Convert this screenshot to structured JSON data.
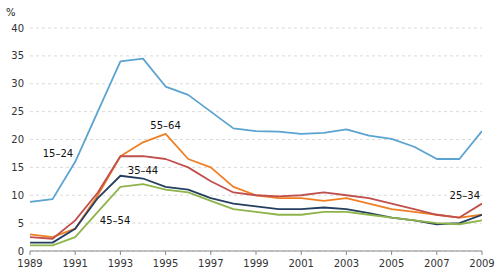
{
  "chart_data": {
    "type": "line",
    "y_label": "%",
    "x": [
      1989,
      1990,
      1991,
      1992,
      1993,
      1994,
      1995,
      1996,
      1997,
      1998,
      1999,
      2000,
      2001,
      2002,
      2003,
      2004,
      2005,
      2006,
      2007,
      2008,
      2009
    ],
    "series": [
      {
        "name": "15–24",
        "color": "#5ba3d0",
        "values": [
          8.8,
          9.3,
          16.0,
          25.0,
          34.0,
          34.5,
          29.5,
          28.0,
          25.0,
          22.0,
          21.5,
          21.4,
          21.0,
          21.2,
          21.8,
          20.7,
          20.1,
          18.7,
          16.5,
          16.5,
          21.5
        ]
      },
      {
        "name": "55–64",
        "color": "#f07f24",
        "values": [
          3.0,
          2.5,
          4.0,
          10.0,
          17.0,
          19.5,
          21.0,
          16.5,
          15.0,
          11.5,
          10.0,
          9.5,
          9.5,
          9.0,
          9.5,
          8.5,
          7.5,
          7.0,
          6.5,
          6.0,
          6.5
        ]
      },
      {
        "name": "25–34",
        "color": "#c0504d",
        "values": [
          2.5,
          2.2,
          5.5,
          10.5,
          17.0,
          17.0,
          16.5,
          15.0,
          12.5,
          10.5,
          10.0,
          9.8,
          10.0,
          10.5,
          10.0,
          9.5,
          8.5,
          7.5,
          6.5,
          6.0,
          8.5
        ]
      },
      {
        "name": "35–44",
        "color": "#243f60",
        "values": [
          1.5,
          1.5,
          4.0,
          9.5,
          13.5,
          13.0,
          11.5,
          11.0,
          9.5,
          8.5,
          8.0,
          7.5,
          7.5,
          7.8,
          7.5,
          6.8,
          6.0,
          5.5,
          4.8,
          5.0,
          6.5
        ]
      },
      {
        "name": "45–54",
        "color": "#8eb44a",
        "values": [
          1.0,
          1.0,
          2.5,
          7.0,
          11.5,
          12.0,
          11.0,
          10.5,
          9.0,
          7.5,
          7.0,
          6.5,
          6.5,
          7.0,
          7.0,
          6.5,
          6.0,
          5.5,
          5.0,
          4.8,
          5.5
        ]
      }
    ],
    "xlim": [
      1989,
      2009
    ],
    "ylim": [
      0,
      40
    ],
    "xticks": [
      1989,
      1991,
      1993,
      1995,
      1997,
      1999,
      2001,
      2003,
      2005,
      2007,
      2009
    ],
    "yticks": [
      0,
      5,
      10,
      15,
      20,
      25,
      30,
      35,
      40
    ],
    "grid": true
  }
}
